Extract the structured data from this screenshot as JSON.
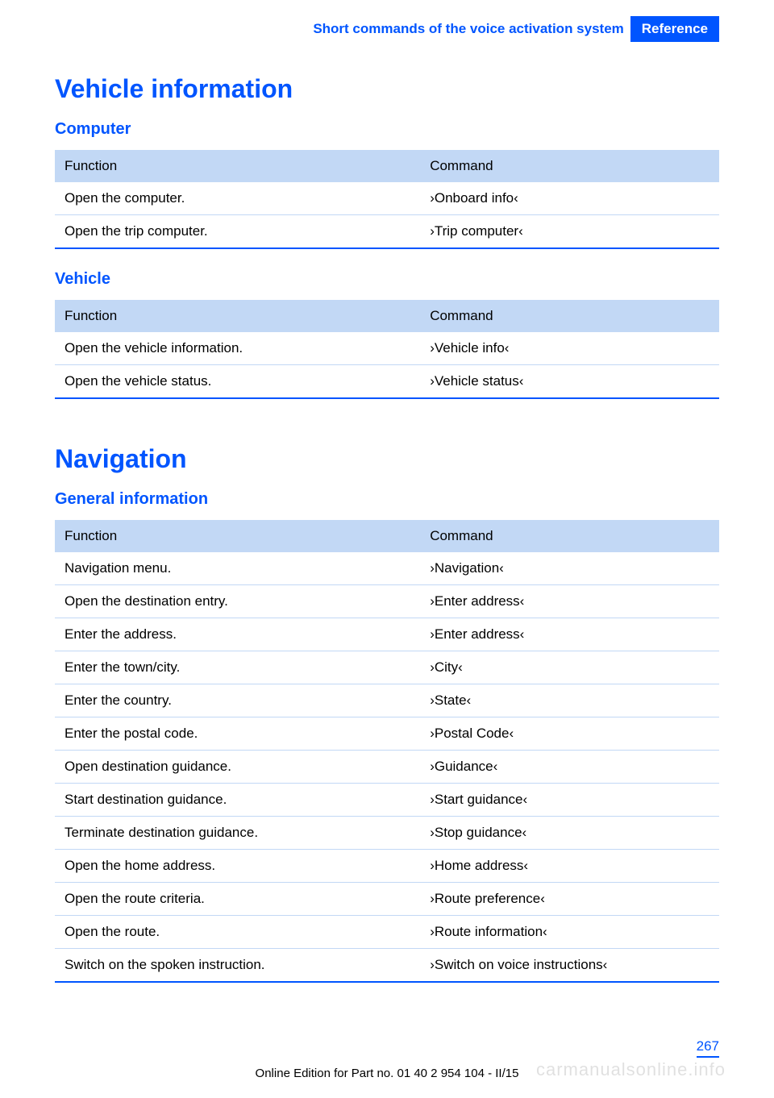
{
  "header": {
    "chapter": "Short commands of the voice activation system",
    "section": "Reference"
  },
  "colors": {
    "accent": "#0055ff",
    "table_header_bg": "#c2d8f5",
    "row_border": "#c2d8f5",
    "table_bottom_rule": "#0055ff",
    "text": "#000000",
    "background": "#ffffff",
    "watermark": "rgba(0,0,0,0.12)"
  },
  "sections": [
    {
      "title": "Vehicle information",
      "subsections": [
        {
          "title": "Computer",
          "columns": [
            "Function",
            "Command"
          ],
          "rows": [
            [
              "Open the computer.",
              "›Onboard info‹"
            ],
            [
              "Open the trip computer.",
              "›Trip computer‹"
            ]
          ]
        },
        {
          "title": "Vehicle",
          "columns": [
            "Function",
            "Command"
          ],
          "rows": [
            [
              "Open the vehicle information.",
              "›Vehicle info‹"
            ],
            [
              "Open the vehicle status.",
              "›Vehicle status‹"
            ]
          ]
        }
      ]
    },
    {
      "title": "Navigation",
      "subsections": [
        {
          "title": "General information",
          "columns": [
            "Function",
            "Command"
          ],
          "rows": [
            [
              "Navigation menu.",
              "›Navigation‹"
            ],
            [
              "Open the destination entry.",
              "›Enter address‹"
            ],
            [
              "Enter the address.",
              "›Enter address‹"
            ],
            [
              "Enter the town/city.",
              "›City‹"
            ],
            [
              "Enter the country.",
              "›State‹"
            ],
            [
              "Enter the postal code.",
              "›Postal Code‹"
            ],
            [
              "Open destination guidance.",
              "›Guidance‹"
            ],
            [
              "Start destination guidance.",
              "›Start guidance‹"
            ],
            [
              "Terminate destination guidance.",
              "›Stop guidance‹"
            ],
            [
              "Open the home address.",
              "›Home address‹"
            ],
            [
              "Open the route criteria.",
              "›Route preference‹"
            ],
            [
              "Open the route.",
              "›Route information‹"
            ],
            [
              "Switch on the spoken instruction.",
              "›Switch on voice instructions‹"
            ]
          ]
        }
      ]
    }
  ],
  "page_number": "267",
  "footer": "Online Edition for Part no. 01 40 2 954 104 - II/15",
  "watermark": "carmanualsonline.info"
}
